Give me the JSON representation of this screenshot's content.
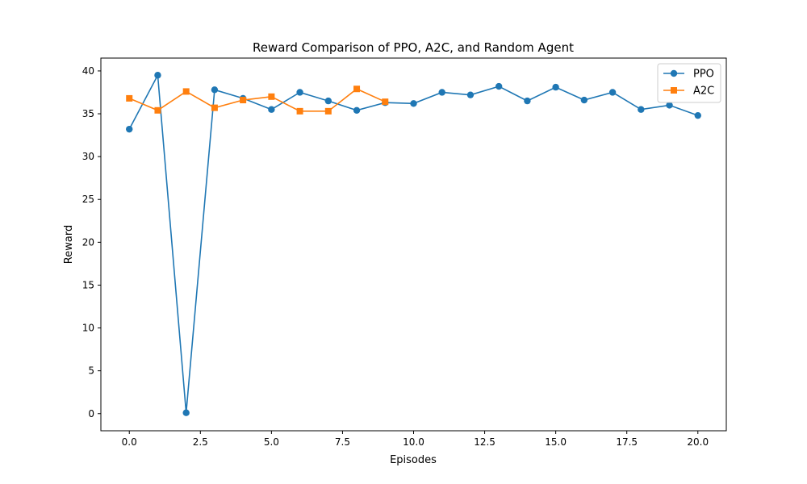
{
  "chart_data": {
    "type": "line",
    "title": "Reward Comparison of PPO, A2C, and Random Agent",
    "xlabel": "Episodes",
    "ylabel": "Reward",
    "xlim": [
      -1,
      21
    ],
    "ylim": [
      -2,
      41.5
    ],
    "xticks": [
      0.0,
      2.5,
      5.0,
      7.5,
      10.0,
      12.5,
      15.0,
      17.5,
      20.0
    ],
    "xtick_labels": [
      "0.0",
      "2.5",
      "5.0",
      "7.5",
      "10.0",
      "12.5",
      "15.0",
      "17.5",
      "20.0"
    ],
    "yticks": [
      0,
      5,
      10,
      15,
      20,
      25,
      30,
      35,
      40
    ],
    "ytick_labels": [
      "0",
      "5",
      "10",
      "15",
      "20",
      "25",
      "30",
      "35",
      "40"
    ],
    "grid": false,
    "legend_position": "top-right",
    "series": [
      {
        "name": "PPO",
        "color": "#1f77b4",
        "marker": "circle",
        "x": [
          0,
          1,
          2,
          3,
          4,
          5,
          6,
          7,
          8,
          9,
          10,
          11,
          12,
          13,
          14,
          15,
          16,
          17,
          18,
          19,
          20
        ],
        "values": [
          33.2,
          39.5,
          0.1,
          37.8,
          36.8,
          35.5,
          37.5,
          36.5,
          35.4,
          36.3,
          36.2,
          37.5,
          37.2,
          38.2,
          36.5,
          38.1,
          36.6,
          37.5,
          35.5,
          36.0,
          34.8
        ]
      },
      {
        "name": "A2C",
        "color": "#ff7f0e",
        "marker": "square",
        "x": [
          0,
          1,
          2,
          3,
          4,
          5,
          6,
          7,
          8,
          9
        ],
        "values": [
          36.8,
          35.4,
          37.6,
          35.7,
          36.6,
          37.0,
          35.3,
          35.3,
          37.9,
          36.4
        ]
      }
    ]
  }
}
